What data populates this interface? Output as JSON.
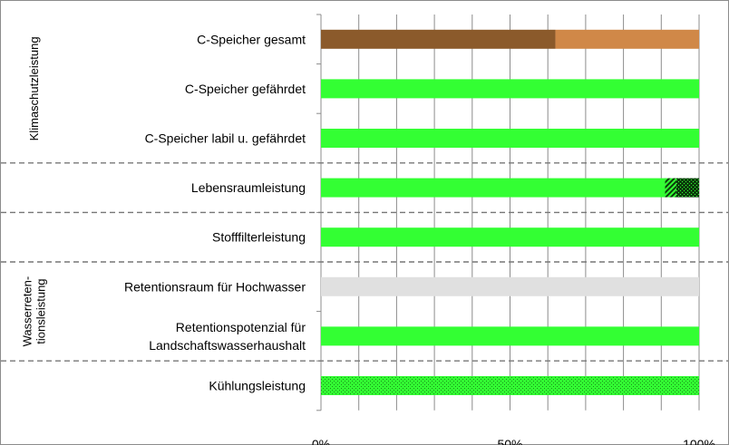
{
  "chart_data": {
    "type": "bar",
    "orientation": "horizontal",
    "stacked": true,
    "xlim": [
      0,
      100
    ],
    "x_ticks": [
      "0%",
      "50%",
      "100%"
    ],
    "grid": true,
    "categories": [
      [
        "C-Speicher gesamt"
      ],
      [
        "C-Speicher gefährdet"
      ],
      [
        "C-Speicher labil u. gefährdet"
      ],
      [
        "Lebensraumleistung"
      ],
      [
        "Stofffilterleistung"
      ],
      [
        "Retentionsraum für Hochwasser"
      ],
      [
        "Retentionspotenzial für",
        "Landschaftswasserhaushalt"
      ],
      [
        "Kühlungsleistung"
      ]
    ],
    "bars": [
      [
        {
          "value": 62,
          "color": "#8B5A2B",
          "pattern": "solid"
        },
        {
          "value": 38,
          "color": "#D08848",
          "pattern": "solid"
        }
      ],
      [
        {
          "value": 100,
          "color": "#33FF33",
          "pattern": "solid"
        }
      ],
      [
        {
          "value": 100,
          "color": "#33FF33",
          "pattern": "solid"
        }
      ],
      [
        {
          "value": 91,
          "color": "#33FF33",
          "pattern": "solid"
        },
        {
          "value": 3,
          "color": "#33FF33",
          "pattern": "hatch"
        },
        {
          "value": 6,
          "color": "#33FF33",
          "pattern": "crosshatch"
        }
      ],
      [
        {
          "value": 100,
          "color": "#33FF33",
          "pattern": "solid"
        }
      ],
      [
        {
          "value": 100,
          "color": "#E0E0E0",
          "pattern": "solid"
        }
      ],
      [
        {
          "value": 100,
          "color": "#33FF33",
          "pattern": "solid"
        }
      ],
      [
        {
          "value": 100,
          "color": "#33FF33",
          "pattern": "dots"
        }
      ]
    ],
    "groups": [
      {
        "label": [
          "Klimaschutzleistung"
        ],
        "from": 0,
        "to": 2
      },
      {
        "label": [
          "Wasserreten-",
          "tionsleistung"
        ],
        "from": 5,
        "to": 6
      }
    ],
    "separators_after": [
      2,
      3,
      4,
      6
    ]
  }
}
